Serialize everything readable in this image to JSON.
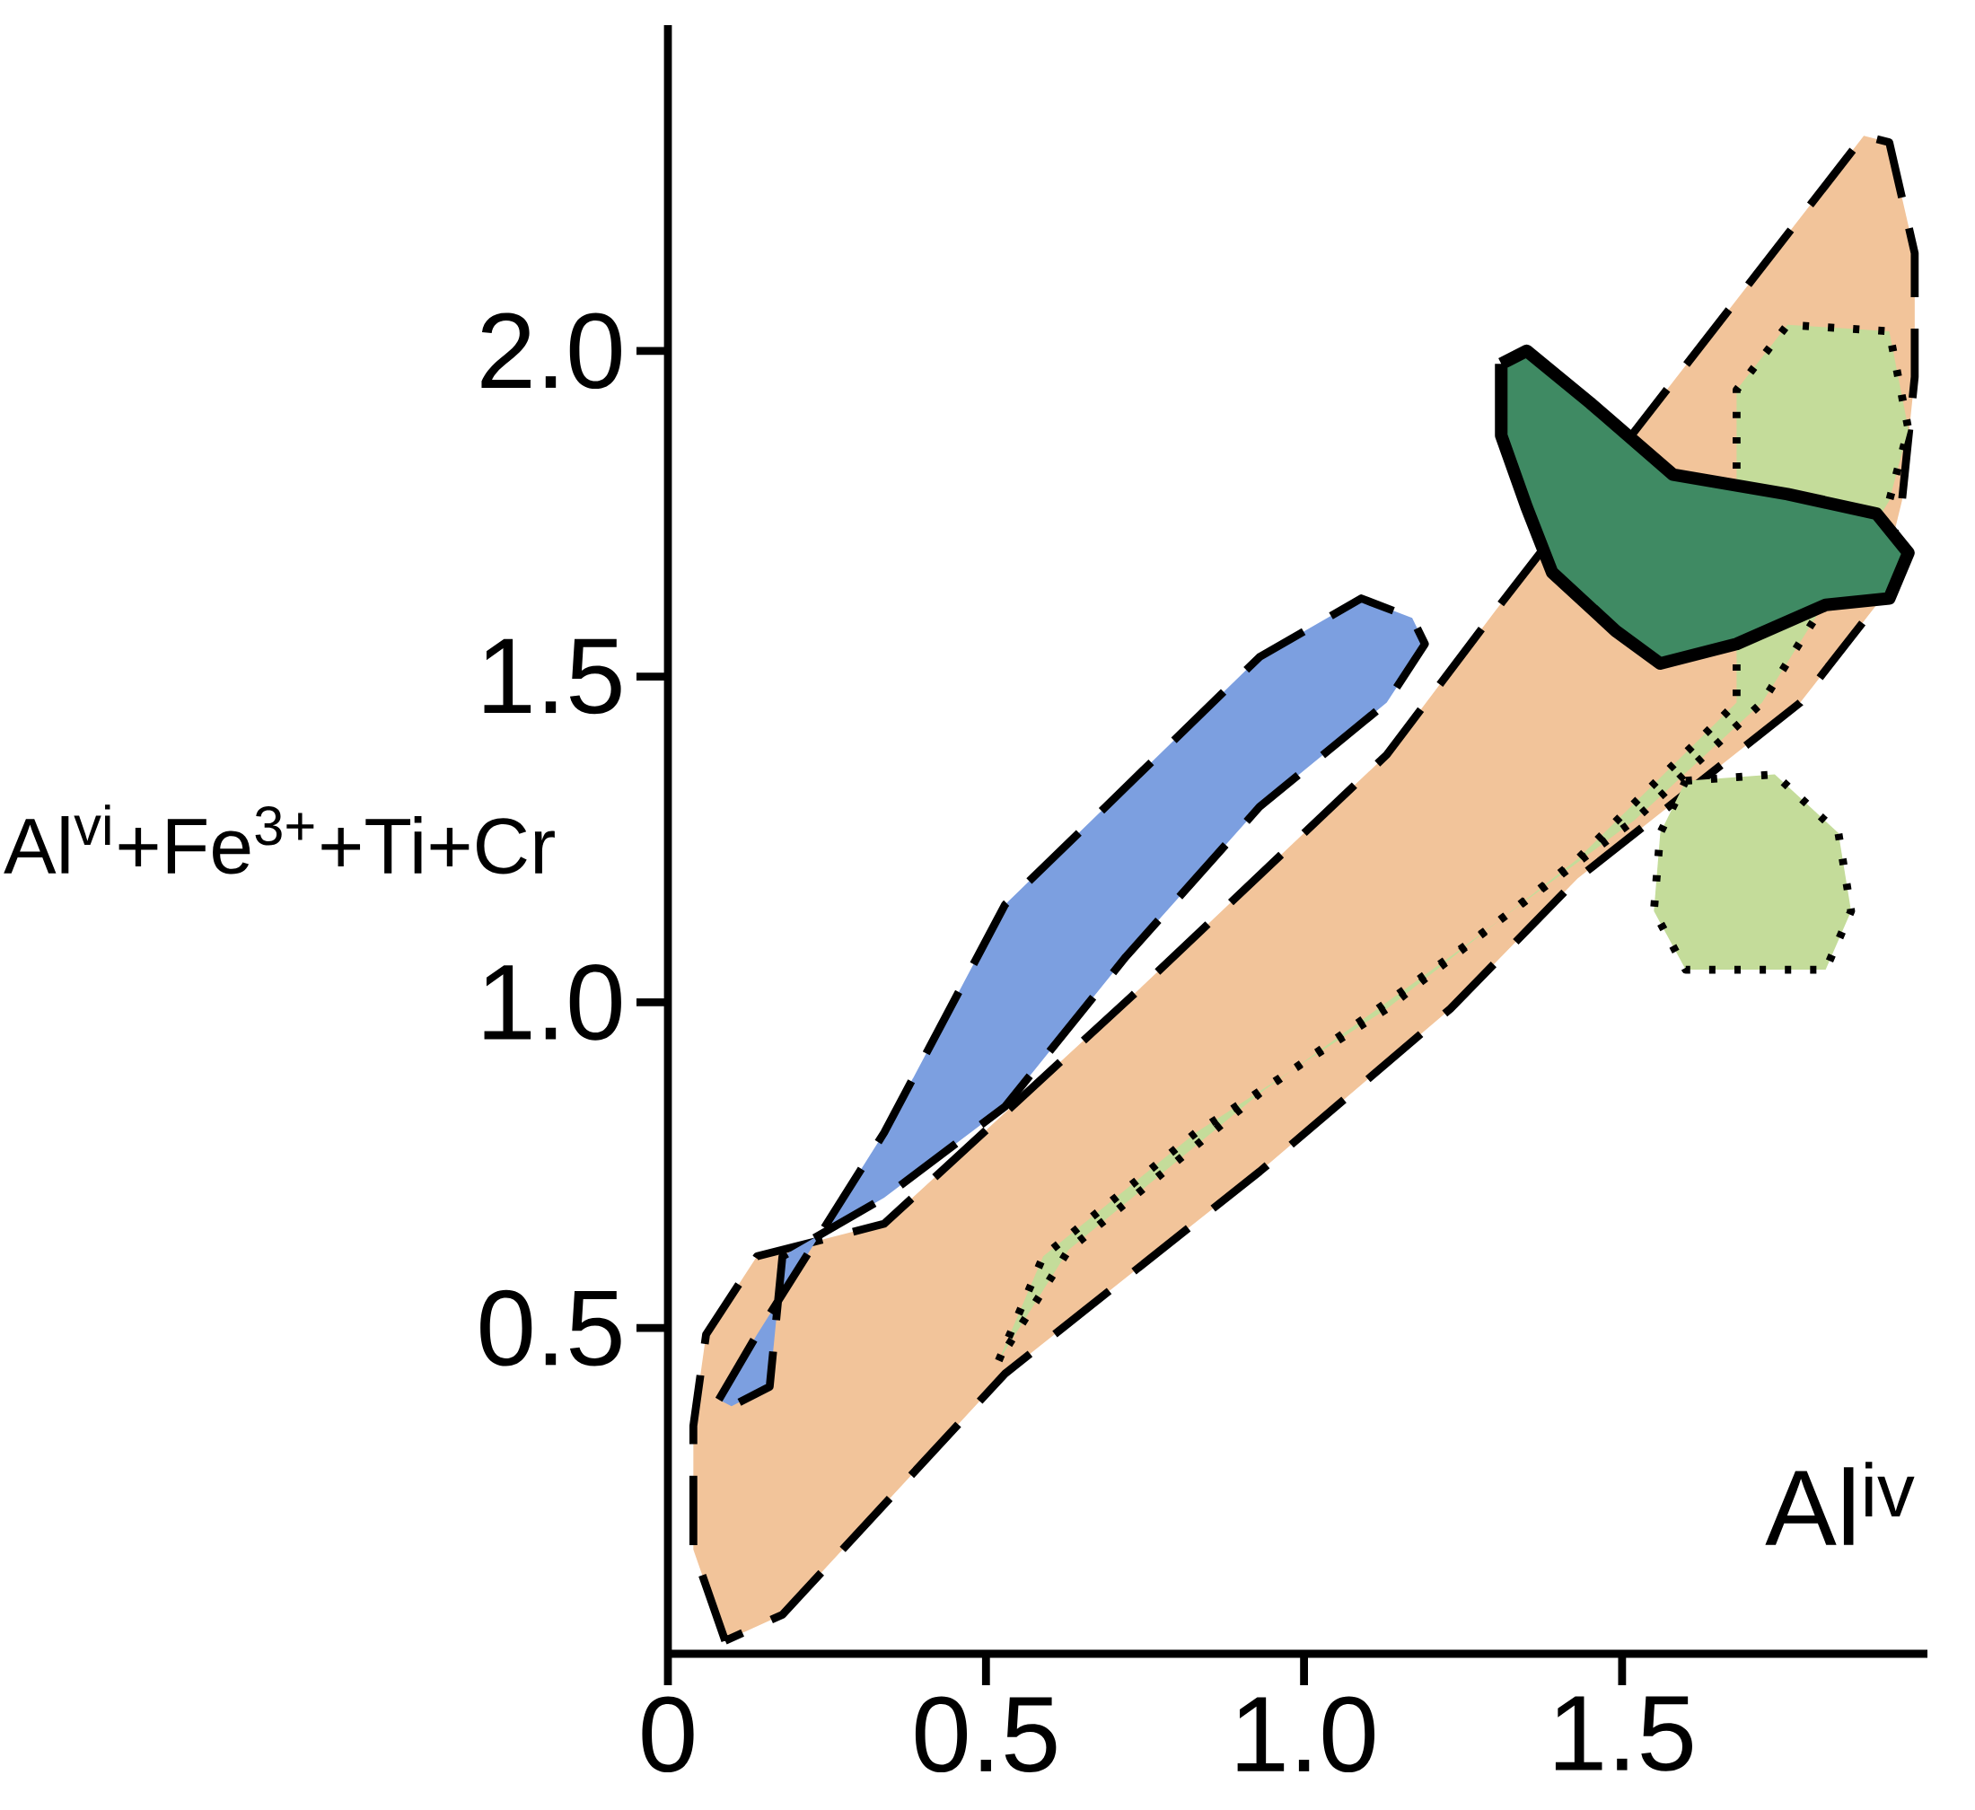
{
  "chart_data": {
    "type": "area",
    "xlabel": "Al$^{iv}$",
    "ylabel": "Al$^{vi}$+Fe$^{3+}$+Ti+Cr",
    "xlim": [
      0,
      1.98
    ],
    "ylim": [
      0,
      2.5
    ],
    "xticks": [
      0,
      0.5,
      {
        "value": 1,
        "label": "1.0"
      },
      1.5
    ],
    "yticks": [
      0.5,
      {
        "value": 1,
        "label": "1.0"
      },
      1.5,
      {
        "value": 2,
        "label": "2.0"
      }
    ],
    "marker": "none",
    "series": [
      {
        "color": "#f2c49a",
        "line_style": "dashed",
        "x": [
          0.09,
          0.04,
          0.04,
          0.06,
          0.14,
          0.34,
          0.73,
          1.13,
          1.3,
          1.88,
          1.92,
          1.96,
          1.96,
          1.94,
          1.9,
          1.78,
          1.43,
          1.23,
          0.93,
          0.53,
          0.18,
          0.09
        ],
        "values": [
          0.02,
          0.16,
          0.35,
          0.49,
          0.61,
          0.66,
          1.01,
          1.38,
          1.6,
          2.33,
          2.32,
          2.15,
          1.96,
          1.77,
          1.61,
          1.46,
          1.19,
          0.99,
          0.74,
          0.43,
          0.06,
          0.02
        ]
      },
      {
        "color": "#7c9fe0",
        "line_style": "dashed",
        "x": [
          0.08,
          0.14,
          0.34,
          0.53,
          0.73,
          0.93,
          1.09,
          1.17,
          1.19,
          1.13,
          0.93,
          0.72,
          0.53,
          0.34,
          0.18,
          0.16,
          0.1,
          0.08
        ],
        "values": [
          0.39,
          0.49,
          0.8,
          1.15,
          1.34,
          1.53,
          1.62,
          1.59,
          1.55,
          1.46,
          1.3,
          1.07,
          0.84,
          0.7,
          0.61,
          0.41,
          0.38,
          0.39
        ]
      },
      {
        "color": "#c4dc9a",
        "line_style": "dotted",
        "x": [
          0.52,
          0.59,
          0.83,
          1.13,
          1.43,
          1.68,
          1.68,
          1.76,
          1.92,
          1.95,
          1.92,
          1.72,
          1.52,
          1.23,
          0.93,
          0.63,
          0.52
        ],
        "values": [
          0.45,
          0.61,
          0.8,
          0.99,
          1.22,
          1.46,
          1.94,
          2.04,
          2.03,
          1.88,
          1.77,
          1.46,
          1.28,
          1.07,
          0.86,
          0.62,
          0.45
        ]
      },
      {
        "color": "#c4dc9a",
        "line_style": "dotted",
        "x": [
          1.6,
          1.74,
          1.84,
          1.86,
          1.82,
          1.6,
          1.55,
          1.56,
          1.6
        ],
        "values": [
          1.34,
          1.35,
          1.26,
          1.14,
          1.05,
          1.05,
          1.14,
          1.26,
          1.34
        ]
      },
      {
        "color": "#3f8a63",
        "line_style": "solid",
        "x": [
          1.31,
          1.35,
          1.45,
          1.58,
          1.76,
          1.9,
          1.95,
          1.92,
          1.82,
          1.68,
          1.56,
          1.49,
          1.39,
          1.35,
          1.31,
          1.31
        ],
        "values": [
          1.98,
          2.0,
          1.92,
          1.81,
          1.78,
          1.75,
          1.69,
          1.62,
          1.61,
          1.55,
          1.52,
          1.57,
          1.66,
          1.76,
          1.87,
          1.98
        ]
      }
    ]
  }
}
